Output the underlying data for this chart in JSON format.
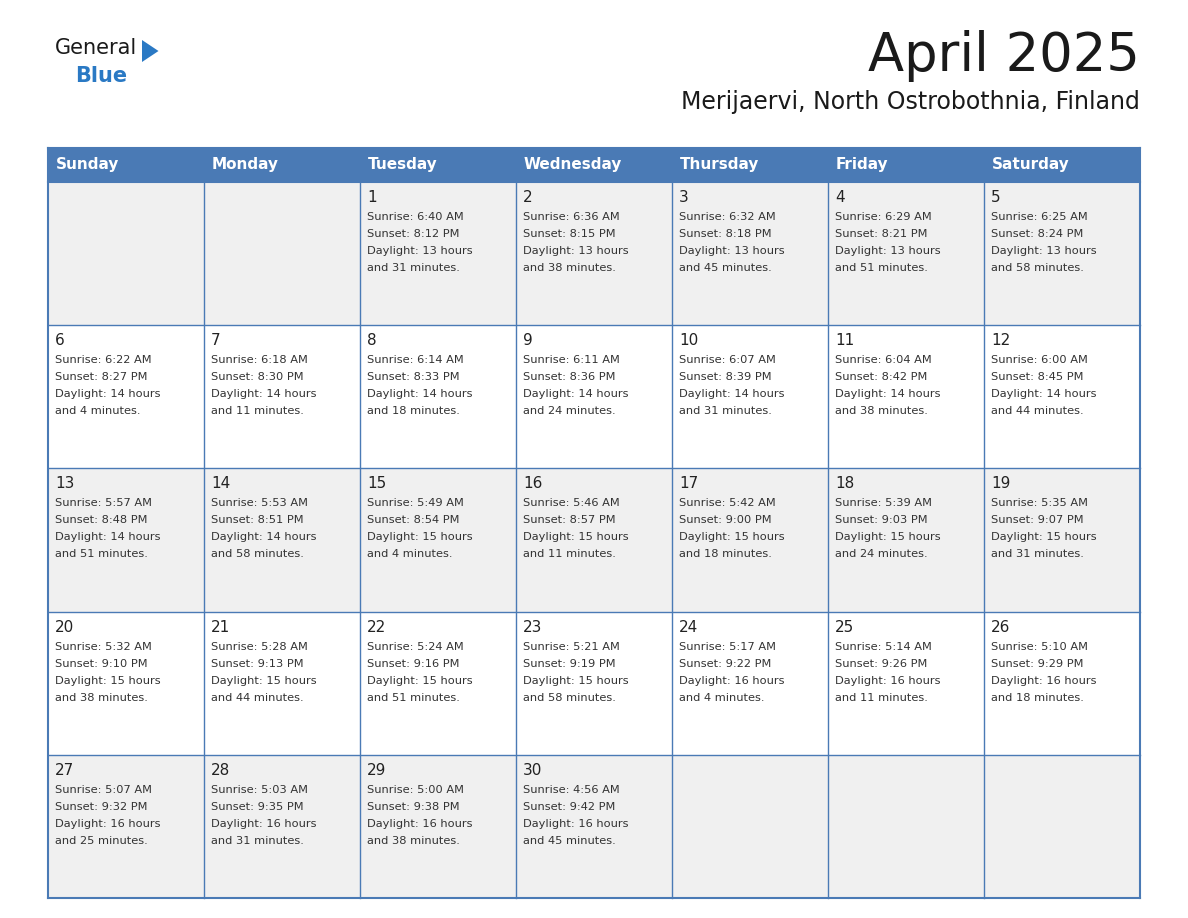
{
  "title": "April 2025",
  "subtitle": "Merijaervi, North Ostrobothnia, Finland",
  "days_of_week": [
    "Sunday",
    "Monday",
    "Tuesday",
    "Wednesday",
    "Thursday",
    "Friday",
    "Saturday"
  ],
  "header_bg": "#4a7ab5",
  "header_text": "#ffffff",
  "cell_bg_odd": "#f0f0f0",
  "cell_bg_even": "#ffffff",
  "cell_border": "#4a7ab5",
  "day_num_color": "#222222",
  "cell_text_color": "#333333",
  "logo_general_color": "#1a1a1a",
  "logo_blue_color": "#2a79c4",
  "calendar": [
    [
      {
        "day": null,
        "info": ""
      },
      {
        "day": null,
        "info": ""
      },
      {
        "day": 1,
        "info": "Sunrise: 6:40 AM\nSunset: 8:12 PM\nDaylight: 13 hours\nand 31 minutes."
      },
      {
        "day": 2,
        "info": "Sunrise: 6:36 AM\nSunset: 8:15 PM\nDaylight: 13 hours\nand 38 minutes."
      },
      {
        "day": 3,
        "info": "Sunrise: 6:32 AM\nSunset: 8:18 PM\nDaylight: 13 hours\nand 45 minutes."
      },
      {
        "day": 4,
        "info": "Sunrise: 6:29 AM\nSunset: 8:21 PM\nDaylight: 13 hours\nand 51 minutes."
      },
      {
        "day": 5,
        "info": "Sunrise: 6:25 AM\nSunset: 8:24 PM\nDaylight: 13 hours\nand 58 minutes."
      }
    ],
    [
      {
        "day": 6,
        "info": "Sunrise: 6:22 AM\nSunset: 8:27 PM\nDaylight: 14 hours\nand 4 minutes."
      },
      {
        "day": 7,
        "info": "Sunrise: 6:18 AM\nSunset: 8:30 PM\nDaylight: 14 hours\nand 11 minutes."
      },
      {
        "day": 8,
        "info": "Sunrise: 6:14 AM\nSunset: 8:33 PM\nDaylight: 14 hours\nand 18 minutes."
      },
      {
        "day": 9,
        "info": "Sunrise: 6:11 AM\nSunset: 8:36 PM\nDaylight: 14 hours\nand 24 minutes."
      },
      {
        "day": 10,
        "info": "Sunrise: 6:07 AM\nSunset: 8:39 PM\nDaylight: 14 hours\nand 31 minutes."
      },
      {
        "day": 11,
        "info": "Sunrise: 6:04 AM\nSunset: 8:42 PM\nDaylight: 14 hours\nand 38 minutes."
      },
      {
        "day": 12,
        "info": "Sunrise: 6:00 AM\nSunset: 8:45 PM\nDaylight: 14 hours\nand 44 minutes."
      }
    ],
    [
      {
        "day": 13,
        "info": "Sunrise: 5:57 AM\nSunset: 8:48 PM\nDaylight: 14 hours\nand 51 minutes."
      },
      {
        "day": 14,
        "info": "Sunrise: 5:53 AM\nSunset: 8:51 PM\nDaylight: 14 hours\nand 58 minutes."
      },
      {
        "day": 15,
        "info": "Sunrise: 5:49 AM\nSunset: 8:54 PM\nDaylight: 15 hours\nand 4 minutes."
      },
      {
        "day": 16,
        "info": "Sunrise: 5:46 AM\nSunset: 8:57 PM\nDaylight: 15 hours\nand 11 minutes."
      },
      {
        "day": 17,
        "info": "Sunrise: 5:42 AM\nSunset: 9:00 PM\nDaylight: 15 hours\nand 18 minutes."
      },
      {
        "day": 18,
        "info": "Sunrise: 5:39 AM\nSunset: 9:03 PM\nDaylight: 15 hours\nand 24 minutes."
      },
      {
        "day": 19,
        "info": "Sunrise: 5:35 AM\nSunset: 9:07 PM\nDaylight: 15 hours\nand 31 minutes."
      }
    ],
    [
      {
        "day": 20,
        "info": "Sunrise: 5:32 AM\nSunset: 9:10 PM\nDaylight: 15 hours\nand 38 minutes."
      },
      {
        "day": 21,
        "info": "Sunrise: 5:28 AM\nSunset: 9:13 PM\nDaylight: 15 hours\nand 44 minutes."
      },
      {
        "day": 22,
        "info": "Sunrise: 5:24 AM\nSunset: 9:16 PM\nDaylight: 15 hours\nand 51 minutes."
      },
      {
        "day": 23,
        "info": "Sunrise: 5:21 AM\nSunset: 9:19 PM\nDaylight: 15 hours\nand 58 minutes."
      },
      {
        "day": 24,
        "info": "Sunrise: 5:17 AM\nSunset: 9:22 PM\nDaylight: 16 hours\nand 4 minutes."
      },
      {
        "day": 25,
        "info": "Sunrise: 5:14 AM\nSunset: 9:26 PM\nDaylight: 16 hours\nand 11 minutes."
      },
      {
        "day": 26,
        "info": "Sunrise: 5:10 AM\nSunset: 9:29 PM\nDaylight: 16 hours\nand 18 minutes."
      }
    ],
    [
      {
        "day": 27,
        "info": "Sunrise: 5:07 AM\nSunset: 9:32 PM\nDaylight: 16 hours\nand 25 minutes."
      },
      {
        "day": 28,
        "info": "Sunrise: 5:03 AM\nSunset: 9:35 PM\nDaylight: 16 hours\nand 31 minutes."
      },
      {
        "day": 29,
        "info": "Sunrise: 5:00 AM\nSunset: 9:38 PM\nDaylight: 16 hours\nand 38 minutes."
      },
      {
        "day": 30,
        "info": "Sunrise: 4:56 AM\nSunset: 9:42 PM\nDaylight: 16 hours\nand 45 minutes."
      },
      {
        "day": null,
        "info": ""
      },
      {
        "day": null,
        "info": ""
      },
      {
        "day": null,
        "info": ""
      }
    ]
  ]
}
